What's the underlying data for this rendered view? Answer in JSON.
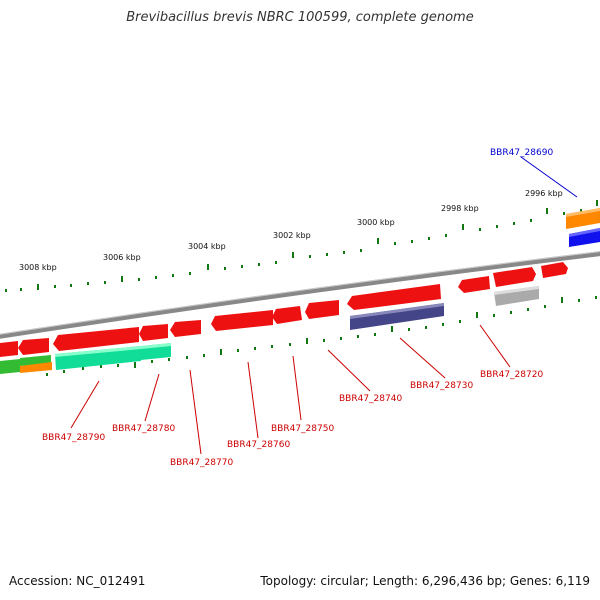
{
  "title": "Brevibacillus brevis NBRC 100599, complete genome",
  "footer": {
    "accession": "Accession: NC_012491",
    "summary": "Topology: circular; Length: 6,296,436 bp; Genes: 6,119"
  },
  "scale_labels": [
    "2996 kbp",
    "2998 kbp",
    "3000 kbp",
    "3002 kbp",
    "3004 kbp",
    "3006 kbp",
    "3008 kbp"
  ],
  "gene_labels": [
    {
      "text": "BBR47_28690",
      "color": "#0000cc"
    },
    {
      "text": "BBR47_28720",
      "color": "#cc0000"
    },
    {
      "text": "BBR47_28730",
      "color": "#cc0000"
    },
    {
      "text": "BBR47_28740",
      "color": "#cc0000"
    },
    {
      "text": "BBR47_28750",
      "color": "#cc0000"
    },
    {
      "text": "BBR47_28760",
      "color": "#cc0000"
    },
    {
      "text": "BBR47_28770",
      "color": "#cc0000"
    },
    {
      "text": "BBR47_28780",
      "color": "#cc0000"
    },
    {
      "text": "BBR47_28790",
      "color": "#cc0000"
    }
  ],
  "colors": {
    "cds": "#ee1111",
    "rna_green": "#11dd99",
    "cog_orange": "#ff8800",
    "cog_blue": "#1111ee",
    "cog_purple": "#444488",
    "cog_gray": "#aaaaaa",
    "cog_green": "#33bb33",
    "tick": "#117711",
    "backbone": "#888888"
  }
}
